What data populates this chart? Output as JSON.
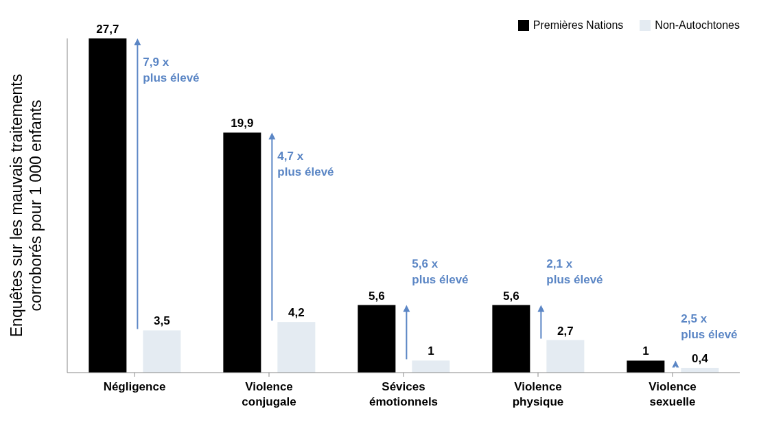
{
  "chart_data": {
    "type": "bar",
    "ylabel": "Enquêtes sur les mauvais traitements corroborés pour 1 000 enfants",
    "categories": [
      "Négligence",
      "Violence conjugale",
      "Sévices émotionnels",
      "Violence physique",
      "Violence sexuelle"
    ],
    "series": [
      {
        "name": "Premières Nations",
        "color": "#000000",
        "values": [
          27.7,
          19.9,
          5.6,
          5.6,
          1
        ],
        "value_labels": [
          "27,7",
          "19,9",
          "5,6",
          "5,6",
          "1"
        ]
      },
      {
        "name": "Non-Autochtones",
        "color": "#e4ebf2",
        "values": [
          3.5,
          4.2,
          1,
          2.7,
          0.4
        ],
        "value_labels": [
          "3,5",
          "4,2",
          "1",
          "2,7",
          "0,4"
        ]
      }
    ],
    "annotations": [
      "7,9 x plus élevé",
      "4,7 x plus élevé",
      "5,6 x plus élevé",
      "2,1 x plus élevé",
      "2,5 x plus élevé"
    ],
    "legend": "top right",
    "grid": false
  }
}
